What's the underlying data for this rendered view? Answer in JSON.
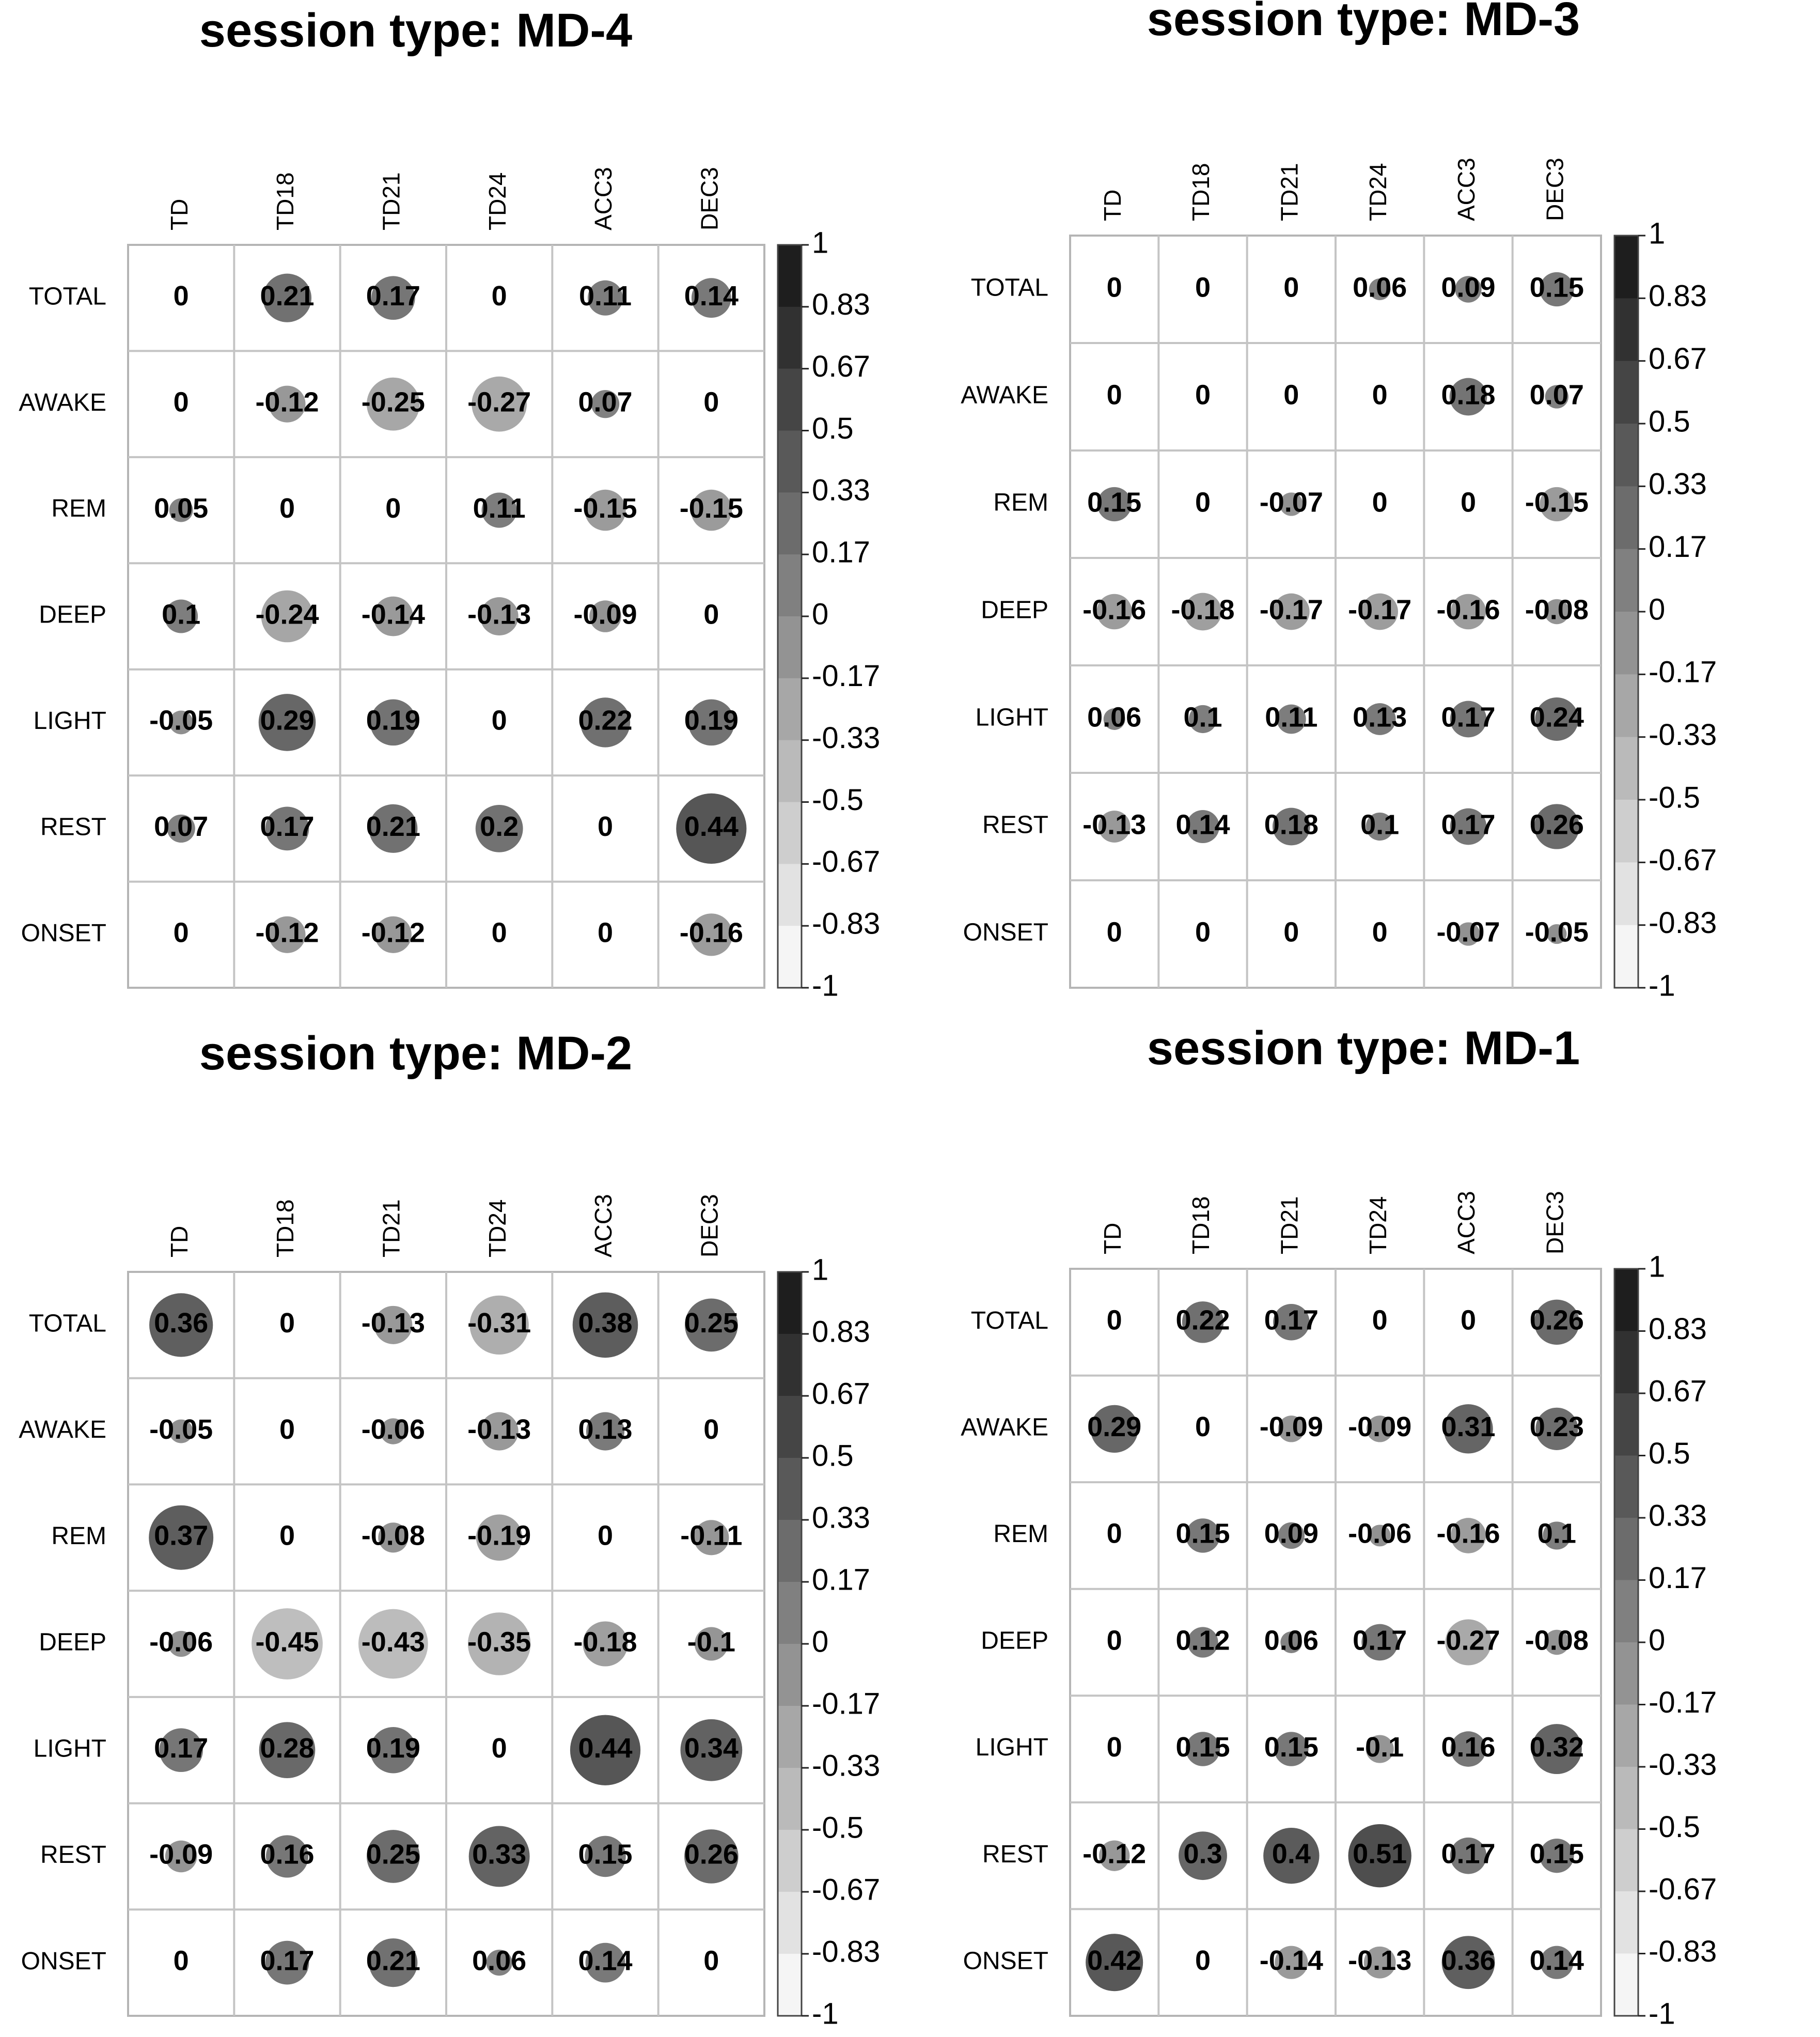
{
  "figure": {
    "colorbar_ticks": [
      "1",
      "0.83",
      "0.67",
      "0.5",
      "0.33",
      "0.17",
      "0",
      "-0.17",
      "-0.33",
      "-0.5",
      "-0.67",
      "-0.83",
      "-1"
    ]
  },
  "chart_data": [
    {
      "type": "heatmap",
      "title": "session type: MD-4",
      "columns": [
        "TD",
        "TD18",
        "TD21",
        "TD24",
        "ACC3",
        "DEC3"
      ],
      "rows": [
        "TOTAL",
        "AWAKE",
        "REM",
        "DEEP",
        "LIGHT",
        "REST",
        "ONSET"
      ],
      "values": [
        [
          0,
          0.21,
          0.17,
          0,
          0.11,
          0.14
        ],
        [
          0,
          -0.12,
          -0.25,
          -0.27,
          0.07,
          0
        ],
        [
          0.05,
          0,
          0,
          0.11,
          -0.15,
          -0.15
        ],
        [
          0.1,
          -0.24,
          -0.14,
          -0.13,
          -0.09,
          0
        ],
        [
          -0.05,
          0.29,
          0.19,
          0,
          0.22,
          0.19
        ],
        [
          0.07,
          0.17,
          0.21,
          0.2,
          0,
          0.44
        ],
        [
          0,
          -0.12,
          -0.12,
          0,
          0,
          -0.16
        ]
      ],
      "value_labels": [
        [
          "0",
          "0.21",
          "0.17",
          "0",
          "0.11",
          "0.14"
        ],
        [
          "0",
          "-0.12",
          "-0.25",
          "-0.27",
          "0.07",
          "0"
        ],
        [
          "0.05",
          "0",
          "0",
          "0.11",
          "-0.15",
          "-0.15"
        ],
        [
          "0.1",
          "-0.24",
          "-0.14",
          "-0.13",
          "-0.09",
          "0"
        ],
        [
          "-0.05",
          "0.29",
          "0.19",
          "0",
          "0.22",
          "0.19"
        ],
        [
          "0.07",
          "0.17",
          "0.21",
          "0.2",
          "0",
          "0.44"
        ],
        [
          "0",
          "-0.12",
          "-0.12",
          "0",
          "0",
          "-0.16"
        ]
      ],
      "color_range": [
        -1,
        1
      ]
    },
    {
      "type": "heatmap",
      "title": "session type: MD-3",
      "columns": [
        "TD",
        "TD18",
        "TD21",
        "TD24",
        "ACC3",
        "DEC3"
      ],
      "rows": [
        "TOTAL",
        "AWAKE",
        "REM",
        "DEEP",
        "LIGHT",
        "REST",
        "ONSET"
      ],
      "values": [
        [
          0,
          0,
          0,
          0.06,
          0.09,
          0.15
        ],
        [
          0,
          0,
          0,
          0,
          0.18,
          0.07
        ],
        [
          0.15,
          0,
          -0.07,
          0,
          0,
          -0.15
        ],
        [
          -0.16,
          -0.18,
          -0.17,
          -0.17,
          -0.16,
          -0.08
        ],
        [
          0.06,
          0.1,
          0.11,
          0.13,
          0.17,
          0.24
        ],
        [
          -0.13,
          0.14,
          0.18,
          0.1,
          0.17,
          0.26
        ],
        [
          0,
          0,
          0,
          0,
          -0.07,
          -0.05
        ]
      ],
      "value_labels": [
        [
          "0",
          "0",
          "0",
          "0.06",
          "0.09",
          "0.15"
        ],
        [
          "0",
          "0",
          "0",
          "0",
          "0.18",
          "0.07"
        ],
        [
          "0.15",
          "0",
          "-0.07",
          "0",
          "0",
          "-0.15"
        ],
        [
          "-0.16",
          "-0.18",
          "-0.17",
          "-0.17",
          "-0.16",
          "-0.08"
        ],
        [
          "0.06",
          "0.1",
          "0.11",
          "0.13",
          "0.17",
          "0.24"
        ],
        [
          "-0.13",
          "0.14",
          "0.18",
          "0.1",
          "0.17",
          "0.26"
        ],
        [
          "0",
          "0",
          "0",
          "0",
          "-0.07",
          "-0.05"
        ]
      ],
      "color_range": [
        -1,
        1
      ]
    },
    {
      "type": "heatmap",
      "title": "session type: MD-2",
      "columns": [
        "TD",
        "TD18",
        "TD21",
        "TD24",
        "ACC3",
        "DEC3"
      ],
      "rows": [
        "TOTAL",
        "AWAKE",
        "REM",
        "DEEP",
        "LIGHT",
        "REST",
        "ONSET"
      ],
      "values": [
        [
          0.36,
          0,
          -0.13,
          -0.31,
          0.38,
          0.25
        ],
        [
          -0.05,
          0,
          -0.06,
          -0.13,
          0.13,
          0
        ],
        [
          0.37,
          0,
          -0.08,
          -0.19,
          0,
          -0.11
        ],
        [
          -0.06,
          -0.45,
          -0.43,
          -0.35,
          -0.18,
          -0.1
        ],
        [
          0.17,
          0.28,
          0.19,
          0,
          0.44,
          0.34
        ],
        [
          -0.09,
          0.16,
          0.25,
          0.33,
          0.15,
          0.26
        ],
        [
          0,
          0.17,
          0.21,
          0.06,
          0.14,
          0
        ]
      ],
      "value_labels": [
        [
          "0.36",
          "0",
          "-0.13",
          "-0.31",
          "0.38",
          "0.25"
        ],
        [
          "-0.05",
          "0",
          "-0.06",
          "-0.13",
          "0.13",
          "0"
        ],
        [
          "0.37",
          "0",
          "-0.08",
          "-0.19",
          "0",
          "-0.11"
        ],
        [
          "-0.06",
          "-0.45",
          "-0.43",
          "-0.35",
          "-0.18",
          "-0.1"
        ],
        [
          "0.17",
          "0.28",
          "0.19",
          "0",
          "0.44",
          "0.34"
        ],
        [
          "-0.09",
          "0.16",
          "0.25",
          "0.33",
          "0.15",
          "0.26"
        ],
        [
          "0",
          "0.17",
          "0.21",
          "0.06",
          "0.14",
          "0"
        ]
      ],
      "color_range": [
        -1,
        1
      ]
    },
    {
      "type": "heatmap",
      "title": "session type: MD-1",
      "columns": [
        "TD",
        "TD18",
        "TD21",
        "TD24",
        "ACC3",
        "DEC3"
      ],
      "rows": [
        "TOTAL",
        "AWAKE",
        "REM",
        "DEEP",
        "LIGHT",
        "REST",
        "ONSET"
      ],
      "values": [
        [
          0,
          0.22,
          0.17,
          0,
          0,
          0.26
        ],
        [
          0.29,
          0,
          -0.09,
          -0.09,
          0.31,
          0.23
        ],
        [
          0,
          0.15,
          0.09,
          -0.06,
          -0.16,
          0.1
        ],
        [
          0,
          0.12,
          0.06,
          0.17,
          -0.27,
          -0.08
        ],
        [
          0,
          0.15,
          0.15,
          -0.1,
          0.16,
          0.32
        ],
        [
          -0.12,
          0.3,
          0.4,
          0.51,
          0.17,
          0.15
        ],
        [
          0.42,
          0,
          -0.14,
          -0.13,
          0.36,
          0.14
        ]
      ],
      "value_labels": [
        [
          "0",
          "0.22",
          "0.17",
          "0",
          "0",
          "0.26"
        ],
        [
          "0.29",
          "0",
          "-0.09",
          "-0.09",
          "0.31",
          "0.23"
        ],
        [
          "0",
          "0.15",
          "0.09",
          "-0.06",
          "-0.16",
          "0.1"
        ],
        [
          "0",
          "0.12",
          "0.06",
          "0.17",
          "-0.27",
          "-0.08"
        ],
        [
          "0",
          "0.15",
          "0.15",
          "-0.1",
          "0.16",
          "0.32"
        ],
        [
          "-0.12",
          "0.3",
          "0.4",
          "0.51",
          "0.17",
          "0.15"
        ],
        [
          "0.42",
          "0",
          "-0.14",
          "-0.13",
          "0.36",
          "0.14"
        ]
      ],
      "color_range": [
        -1,
        1
      ]
    }
  ]
}
